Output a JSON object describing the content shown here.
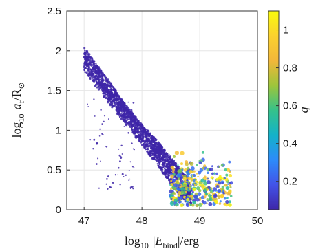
{
  "chart_data": {
    "type": "scatter",
    "xlim": [
      46.7,
      50
    ],
    "ylim": [
      0,
      2.5
    ],
    "x_ticks": [
      "47",
      "48",
      "49",
      "50"
    ],
    "y_ticks": [
      "0",
      "0.5",
      "1",
      "1.5",
      "2",
      "2.5"
    ],
    "grid": true,
    "color_scale": {
      "label": "q",
      "range": [
        0.05,
        1.1
      ],
      "ticks": [
        "0.2",
        "0.4",
        "0.6",
        "0.8",
        "1"
      ],
      "colormap": [
        "#3e26a8",
        "#4253e8",
        "#2d8bfa",
        "#13b2c9",
        "#35c28a",
        "#9dc53b",
        "#f2b73a",
        "#fbd12e",
        "#f9fb0e"
      ]
    },
    "main_band": {
      "comment_free": true,
      "x": [
        47.0,
        47.4,
        47.8,
        48.2,
        48.6,
        48.85
      ],
      "y_low": [
        1.75,
        1.35,
        1.0,
        0.62,
        0.22,
        0.03
      ],
      "y_high": [
        2.05,
        1.65,
        1.25,
        0.88,
        0.55,
        0.25
      ],
      "q": 0.05
    },
    "upper_branch": {
      "x": [
        47.25,
        47.8,
        48.3,
        48.6,
        48.8
      ],
      "y": [
        1.6,
        1.2,
        0.82,
        0.55,
        0.38
      ],
      "q": 0.05
    },
    "high_q_cloud": {
      "x_range": [
        48.5,
        49.55
      ],
      "y_range": [
        0.05,
        1.1
      ],
      "q_range": [
        0.5,
        1.1
      ]
    },
    "sparse_points": {
      "x_range": [
        47.05,
        47.9
      ],
      "y_range": [
        0.25,
        1.4
      ],
      "q": 0.05
    }
  },
  "axes": {
    "xlabel_prefix": "log",
    "xlabel_sub": "10",
    "xlabel_main": "|",
    "xlabel_var": "E",
    "xlabel_var_sub": "bind",
    "xlabel_suffix": "|/erg",
    "ylabel_prefix": "log",
    "ylabel_sub": "10",
    "ylabel_var": "a",
    "ylabel_var_sub": "f",
    "ylabel_suffix": "/R",
    "ylabel_suffix_sub": "⊙"
  }
}
